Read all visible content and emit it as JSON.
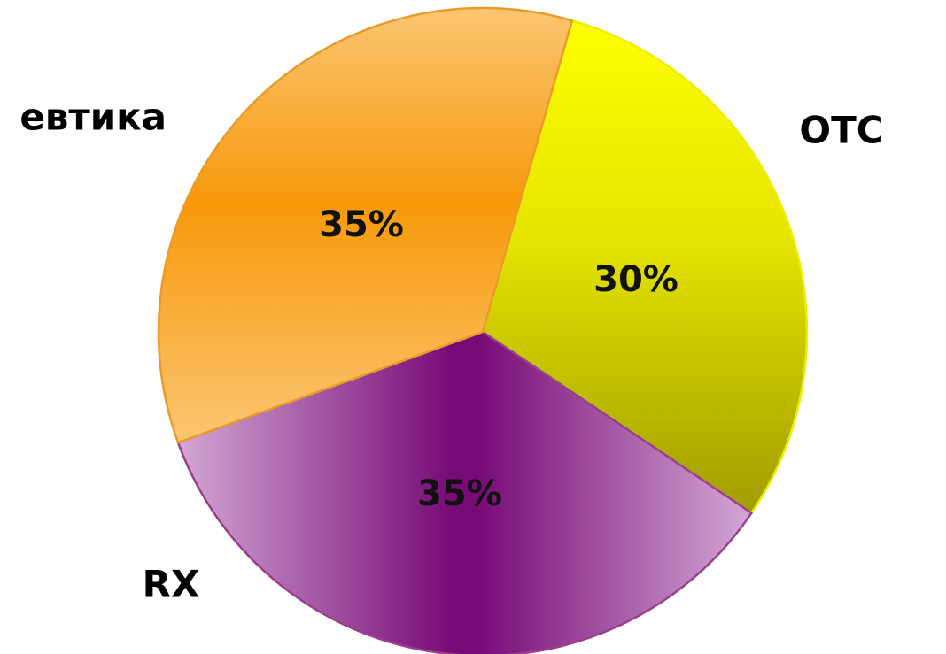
{
  "chart_data": {
    "type": "pie",
    "slices": [
      {
        "label": "OTC",
        "value": 30,
        "value_label": "30%",
        "color": "#f2f000"
      },
      {
        "label": "RX",
        "value": 35,
        "value_label": "35%",
        "color": "#7b0f79"
      },
      {
        "label": "евтика",
        "value": 35,
        "value_label": "35%",
        "color": "#f59c10"
      }
    ],
    "colors": {
      "otc_light": "#ffff00",
      "otc_dark": "#a09d00",
      "rx_center": "#770a76",
      "rx_edge": "#d3a8d5",
      "rx_border": "#9b3f8c",
      "cosmetics_center": "#f8990a",
      "cosmetics_edge": "#fbc672",
      "cosmetics_border": "#ea9a2a"
    }
  }
}
